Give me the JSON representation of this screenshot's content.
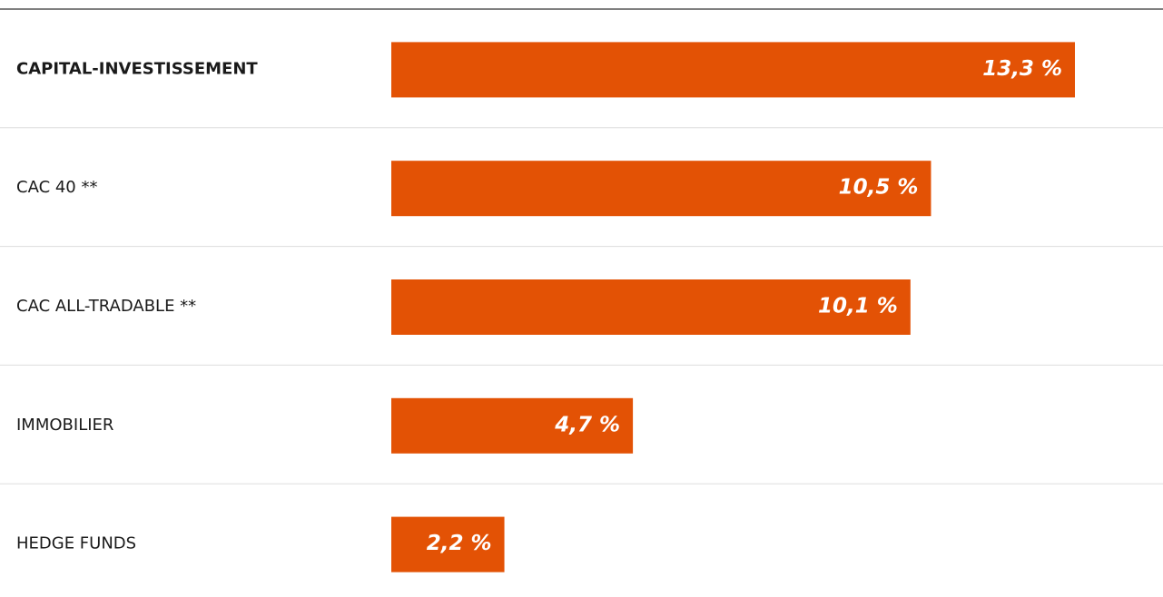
{
  "chart_data": {
    "type": "bar",
    "orientation": "horizontal",
    "categories": [
      "CAPITAL-INVESTISSEMENT",
      "CAC 40 **",
      "CAC ALL-TRADABLE **",
      "IMMOBILIER",
      "HEDGE FUNDS"
    ],
    "values": [
      13.3,
      10.5,
      10.1,
      4.7,
      2.2
    ],
    "value_labels": [
      "13,3 %",
      "10,5 %",
      "10,1 %",
      "4,7 %",
      "2,2 %"
    ],
    "color": "#e35205"
  }
}
